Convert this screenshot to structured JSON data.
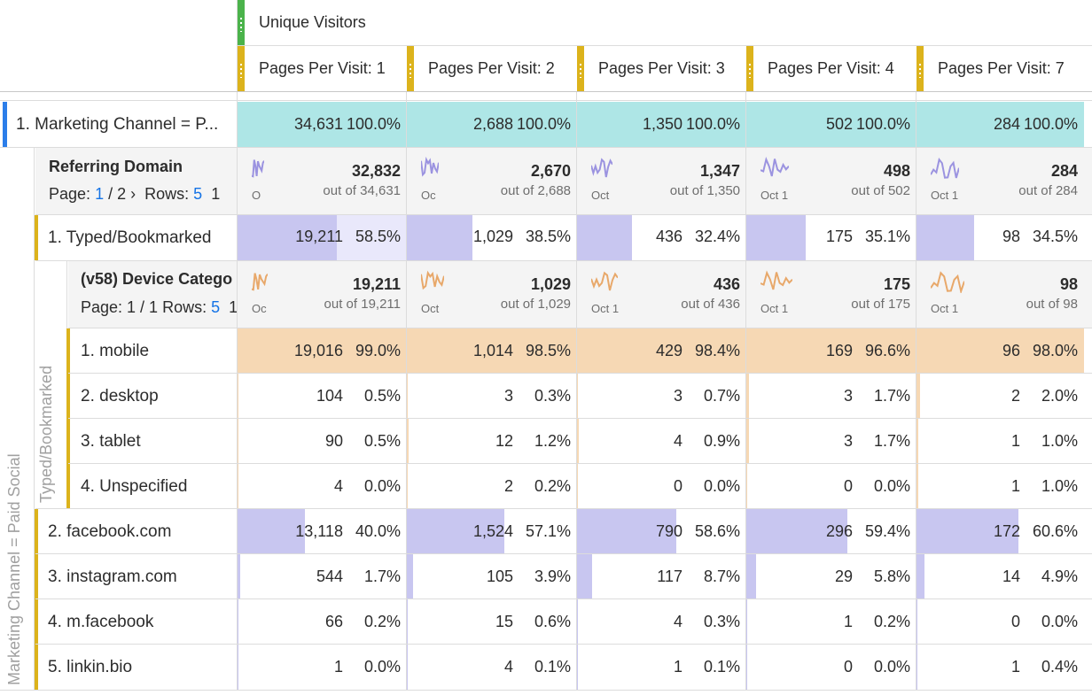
{
  "header": {
    "metric": "Unique Visitors",
    "columns": [
      "Pages Per Visit: 1",
      "Pages Per Visit: 2",
      "Pages Per Visit: 3",
      "Pages Per Visit: 4",
      "Pages Per Visit: 7"
    ]
  },
  "top_row": {
    "label": "1.  Marketing Channel = P...",
    "values": [
      {
        "num": "34,631",
        "pct": "100.0%"
      },
      {
        "num": "2,688",
        "pct": "100.0%"
      },
      {
        "num": "1,350",
        "pct": "100.0%"
      },
      {
        "num": "502",
        "pct": "100.0%"
      },
      {
        "num": "284",
        "pct": "100.0%"
      }
    ]
  },
  "side_label_outer": "Marketing Channel = Paid Social",
  "side_label_inner": "Typed/Bookmarked",
  "referring_domain": {
    "title": "Referring Domain",
    "page_prefix": "Page:",
    "page_current": "1",
    "page_total": "/ 2",
    "rows_label": "Rows:",
    "rows_value": "5",
    "rows_tail": "1",
    "summary": [
      {
        "total": "32,832",
        "out_of": "out of 34,631",
        "date": "O"
      },
      {
        "total": "2,670",
        "out_of": "out of 2,688",
        "date": "Oc"
      },
      {
        "total": "1,347",
        "out_of": "out of 1,350",
        "date": "Oct"
      },
      {
        "total": "498",
        "out_of": "out of 502",
        "date": "Oct 1"
      },
      {
        "total": "284",
        "out_of": "out of 284",
        "date": "Oct 1"
      }
    ],
    "spark_color": "#9b93e0"
  },
  "typed_row": {
    "label": "1.  Typed/Bookmarked",
    "values": [
      {
        "num": "19,211",
        "pct": "58.5%",
        "frac": 0.585
      },
      {
        "num": "1,029",
        "pct": "38.5%",
        "frac": 0.385
      },
      {
        "num": "436",
        "pct": "32.4%",
        "frac": 0.324
      },
      {
        "num": "175",
        "pct": "35.1%",
        "frac": 0.351
      },
      {
        "num": "98",
        "pct": "34.5%",
        "frac": 0.345
      }
    ]
  },
  "device": {
    "title": "(v58) Device Catego",
    "page_text": "Page: 1 / 1",
    "rows_label": "Rows:",
    "rows_value": "5",
    "rows_tail": "1",
    "summary": [
      {
        "total": "19,211",
        "out_of": "out of 19,211",
        "date": "Oc"
      },
      {
        "total": "1,029",
        "out_of": "out of 1,029",
        "date": "Oct"
      },
      {
        "total": "436",
        "out_of": "out of 436",
        "date": "Oct 1"
      },
      {
        "total": "175",
        "out_of": "out of 175",
        "date": "Oct 1"
      },
      {
        "total": "98",
        "out_of": "out of 98",
        "date": "Oct 1"
      }
    ],
    "spark_color": "#e8a86a",
    "rows": [
      {
        "label": "1.  mobile",
        "values": [
          {
            "num": "19,016",
            "pct": "99.0%",
            "frac": 0.99
          },
          {
            "num": "1,014",
            "pct": "98.5%",
            "frac": 0.985
          },
          {
            "num": "429",
            "pct": "98.4%",
            "frac": 0.984
          },
          {
            "num": "169",
            "pct": "96.6%",
            "frac": 0.966
          },
          {
            "num": "96",
            "pct": "98.0%",
            "frac": 0.98
          }
        ]
      },
      {
        "label": "2.  desktop",
        "values": [
          {
            "num": "104",
            "pct": "0.5%",
            "frac": 0.005
          },
          {
            "num": "3",
            "pct": "0.3%",
            "frac": 0.003
          },
          {
            "num": "3",
            "pct": "0.7%",
            "frac": 0.007
          },
          {
            "num": "3",
            "pct": "1.7%",
            "frac": 0.017
          },
          {
            "num": "2",
            "pct": "2.0%",
            "frac": 0.02
          }
        ]
      },
      {
        "label": "3.  tablet",
        "values": [
          {
            "num": "90",
            "pct": "0.5%",
            "frac": 0.005
          },
          {
            "num": "12",
            "pct": "1.2%",
            "frac": 0.012
          },
          {
            "num": "4",
            "pct": "0.9%",
            "frac": 0.009
          },
          {
            "num": "3",
            "pct": "1.7%",
            "frac": 0.017
          },
          {
            "num": "1",
            "pct": "1.0%",
            "frac": 0.01
          }
        ]
      },
      {
        "label": "4.  Unspecified",
        "values": [
          {
            "num": "4",
            "pct": "0.0%",
            "frac": 0.0
          },
          {
            "num": "2",
            "pct": "0.2%",
            "frac": 0.002
          },
          {
            "num": "0",
            "pct": "0.0%",
            "frac": 0.0
          },
          {
            "num": "0",
            "pct": "0.0%",
            "frac": 0.0
          },
          {
            "num": "1",
            "pct": "1.0%",
            "frac": 0.01
          }
        ]
      }
    ]
  },
  "domain_rows": [
    {
      "label": "2.  facebook.com",
      "values": [
        {
          "num": "13,118",
          "pct": "40.0%",
          "frac": 0.4
        },
        {
          "num": "1,524",
          "pct": "57.1%",
          "frac": 0.571
        },
        {
          "num": "790",
          "pct": "58.6%",
          "frac": 0.586
        },
        {
          "num": "296",
          "pct": "59.4%",
          "frac": 0.594
        },
        {
          "num": "172",
          "pct": "60.6%",
          "frac": 0.606
        }
      ]
    },
    {
      "label": "3.  instagram.com",
      "values": [
        {
          "num": "544",
          "pct": "1.7%",
          "frac": 0.017
        },
        {
          "num": "105",
          "pct": "3.9%",
          "frac": 0.039
        },
        {
          "num": "117",
          "pct": "8.7%",
          "frac": 0.087
        },
        {
          "num": "29",
          "pct": "5.8%",
          "frac": 0.058
        },
        {
          "num": "14",
          "pct": "4.9%",
          "frac": 0.049
        }
      ]
    },
    {
      "label": "4.  m.facebook",
      "values": [
        {
          "num": "66",
          "pct": "0.2%",
          "frac": 0.002
        },
        {
          "num": "15",
          "pct": "0.6%",
          "frac": 0.006
        },
        {
          "num": "4",
          "pct": "0.3%",
          "frac": 0.003
        },
        {
          "num": "1",
          "pct": "0.2%",
          "frac": 0.002
        },
        {
          "num": "0",
          "pct": "0.0%",
          "frac": 0.0
        }
      ]
    },
    {
      "label": "5.  linkin.bio",
      "values": [
        {
          "num": "1",
          "pct": "0.0%",
          "frac": 0.0
        },
        {
          "num": "4",
          "pct": "0.1%",
          "frac": 0.001
        },
        {
          "num": "1",
          "pct": "0.1%",
          "frac": 0.001
        },
        {
          "num": "0",
          "pct": "0.0%",
          "frac": 0.0
        },
        {
          "num": "1",
          "pct": "0.4%",
          "frac": 0.004
        }
      ]
    }
  ],
  "colors": {
    "accent_blue": "#2b7de9",
    "accent_yellow": "#dcb31c",
    "accent_green": "#4bb34b",
    "teal": "#aee6e6",
    "purple": "#c8c6f0",
    "purple_light": "#e9e8fb",
    "orange": "#f6d8b4"
  }
}
